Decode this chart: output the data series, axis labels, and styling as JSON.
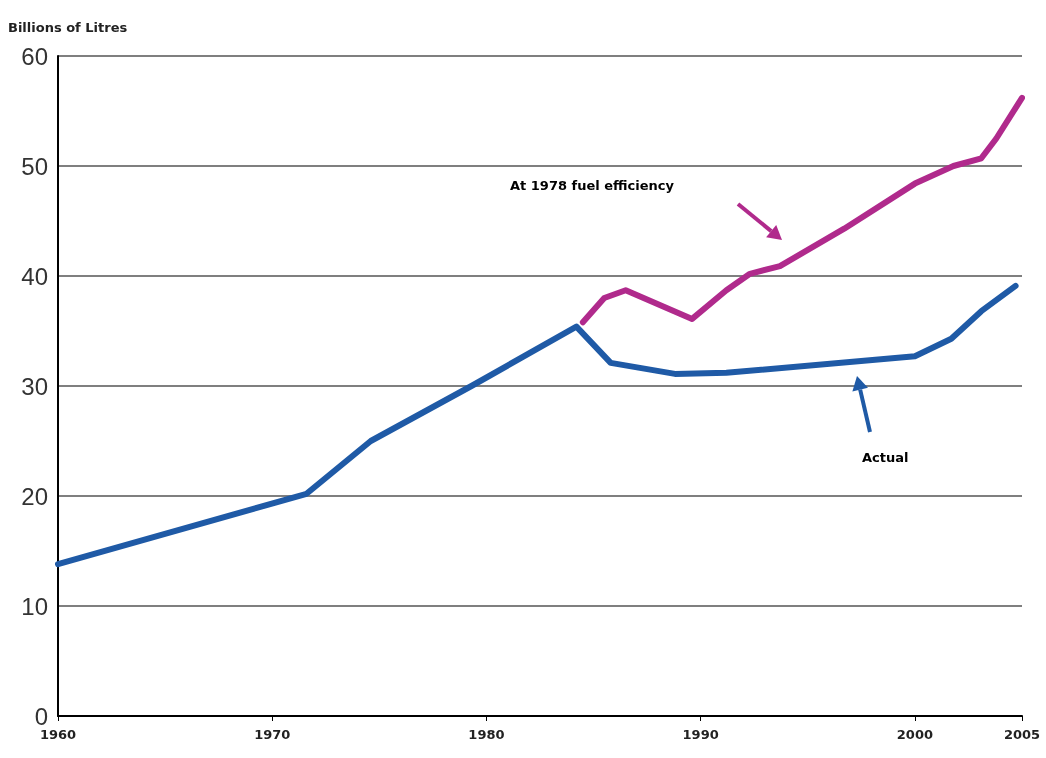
{
  "chart_data": {
    "type": "line",
    "ylabel": "Billions of Litres",
    "xlim": [
      1960,
      2005
    ],
    "xticks": [
      1960,
      1970,
      1980,
      1990,
      2000,
      2005
    ],
    "ylim": [
      0,
      60
    ],
    "yticks": [
      0,
      10,
      20,
      30,
      40,
      50,
      60
    ],
    "grid": "y",
    "marker": "none",
    "line_style": "solid",
    "series": [
      {
        "color": "#1f5aa6",
        "x": [
          1960,
          1971.6,
          1974.6,
          1979.3,
          1984.2,
          1985.8,
          1988.8,
          1991.2,
          2000,
          2001.7,
          2003.1,
          2004.7
        ],
        "values": [
          13.8,
          20.2,
          25,
          30,
          35.4,
          32.1,
          31.1,
          31.2,
          32.7,
          34.3,
          36.8,
          39.1
        ]
      },
      {
        "color": "#b02a8c",
        "x": [
          1984.5,
          1985.5,
          1986.5,
          1989.6,
          1991.2,
          1992.3,
          1993.7,
          1996.7,
          2000,
          2001.8,
          2003.1,
          2003.8,
          2005
        ],
        "values": [
          35.8,
          38,
          38.7,
          36.1,
          38.7,
          40.2,
          40.9,
          44.3,
          48.4,
          50,
          50.7,
          52.5,
          56.2
        ]
      }
    ],
    "annotations": [
      "At 1978 fuel efficiency",
      "Actual"
    ]
  }
}
